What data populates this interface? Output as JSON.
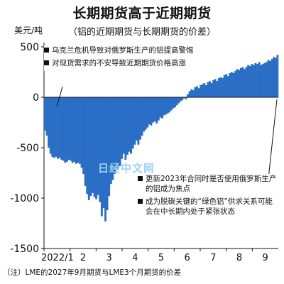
{
  "title": "长期期货高于近期期货",
  "subtitle": "（铝的近期期货与长期期货的价差）",
  "unit": "美元/吨",
  "note": "（注）LME的2027年9月期货与LME3个月期货的价差",
  "watermark": "日经中文网",
  "annotations": {
    "top": [
      "乌克兰危机导致对俄罗斯生产的铝提高警惕",
      "对现货需求的不安导致近期期货价格高涨"
    ],
    "bottom": [
      "更新2023年合同时是否使用俄罗斯生产的铝成为焦点",
      "成为脱碳关键的“绿色铝”供求关系可能会在中长期内处于紧张状态"
    ]
  },
  "colors": {
    "bars": "#2a6ec6",
    "text": "#111111",
    "watermark": "#9ad3f0"
  },
  "chart_data": {
    "type": "bar",
    "title": "长期期货高于近期期货",
    "subtitle": "（铝的近期期货与长期期货的价差）",
    "ylabel": "美元/吨",
    "ylim": [
      -1500,
      500
    ],
    "yticks": [
      500,
      0,
      -500,
      -1000,
      -1500
    ],
    "x_tick_labels": [
      "2022/1",
      "2",
      "3",
      "4",
      "5",
      "6",
      "7",
      "8",
      "9"
    ],
    "series": [
      {
        "values": [
          -330,
          -380,
          -500,
          -560,
          -590,
          -600,
          -590,
          -610,
          -600,
          -620,
          -630,
          -650,
          -640,
          -620,
          -630,
          -650,
          -640,
          -660,
          -650,
          -660,
          -700,
          -760,
          -880,
          -960,
          -1020,
          -980,
          -950,
          -990,
          -1010,
          -970,
          -1040,
          -1180,
          -1100,
          -1230,
          -1120,
          -980,
          -860,
          -820,
          -760,
          -700,
          -720,
          -680,
          -610,
          -560,
          -620,
          -570,
          -540,
          -560,
          -510,
          -470,
          -430,
          -470,
          -420,
          -380,
          -340,
          -320,
          -300,
          -270,
          -280,
          -250,
          -240,
          -260,
          -230,
          -200,
          -210,
          -180,
          -170,
          -160,
          -150,
          -130,
          -110,
          -100,
          -80,
          -60,
          -40,
          -30,
          -10,
          -20,
          30,
          60,
          80,
          70,
          100,
          110,
          90,
          120,
          130,
          140,
          120,
          150,
          160,
          140,
          170,
          180,
          160,
          190,
          200,
          190,
          220,
          230,
          210,
          240,
          250,
          240,
          260,
          280,
          270,
          290,
          300,
          280,
          300,
          320,
          310,
          330,
          320,
          340,
          330,
          350,
          320,
          330,
          340,
          350,
          370,
          360,
          380,
          400,
          390,
          420
        ]
      }
    ]
  }
}
